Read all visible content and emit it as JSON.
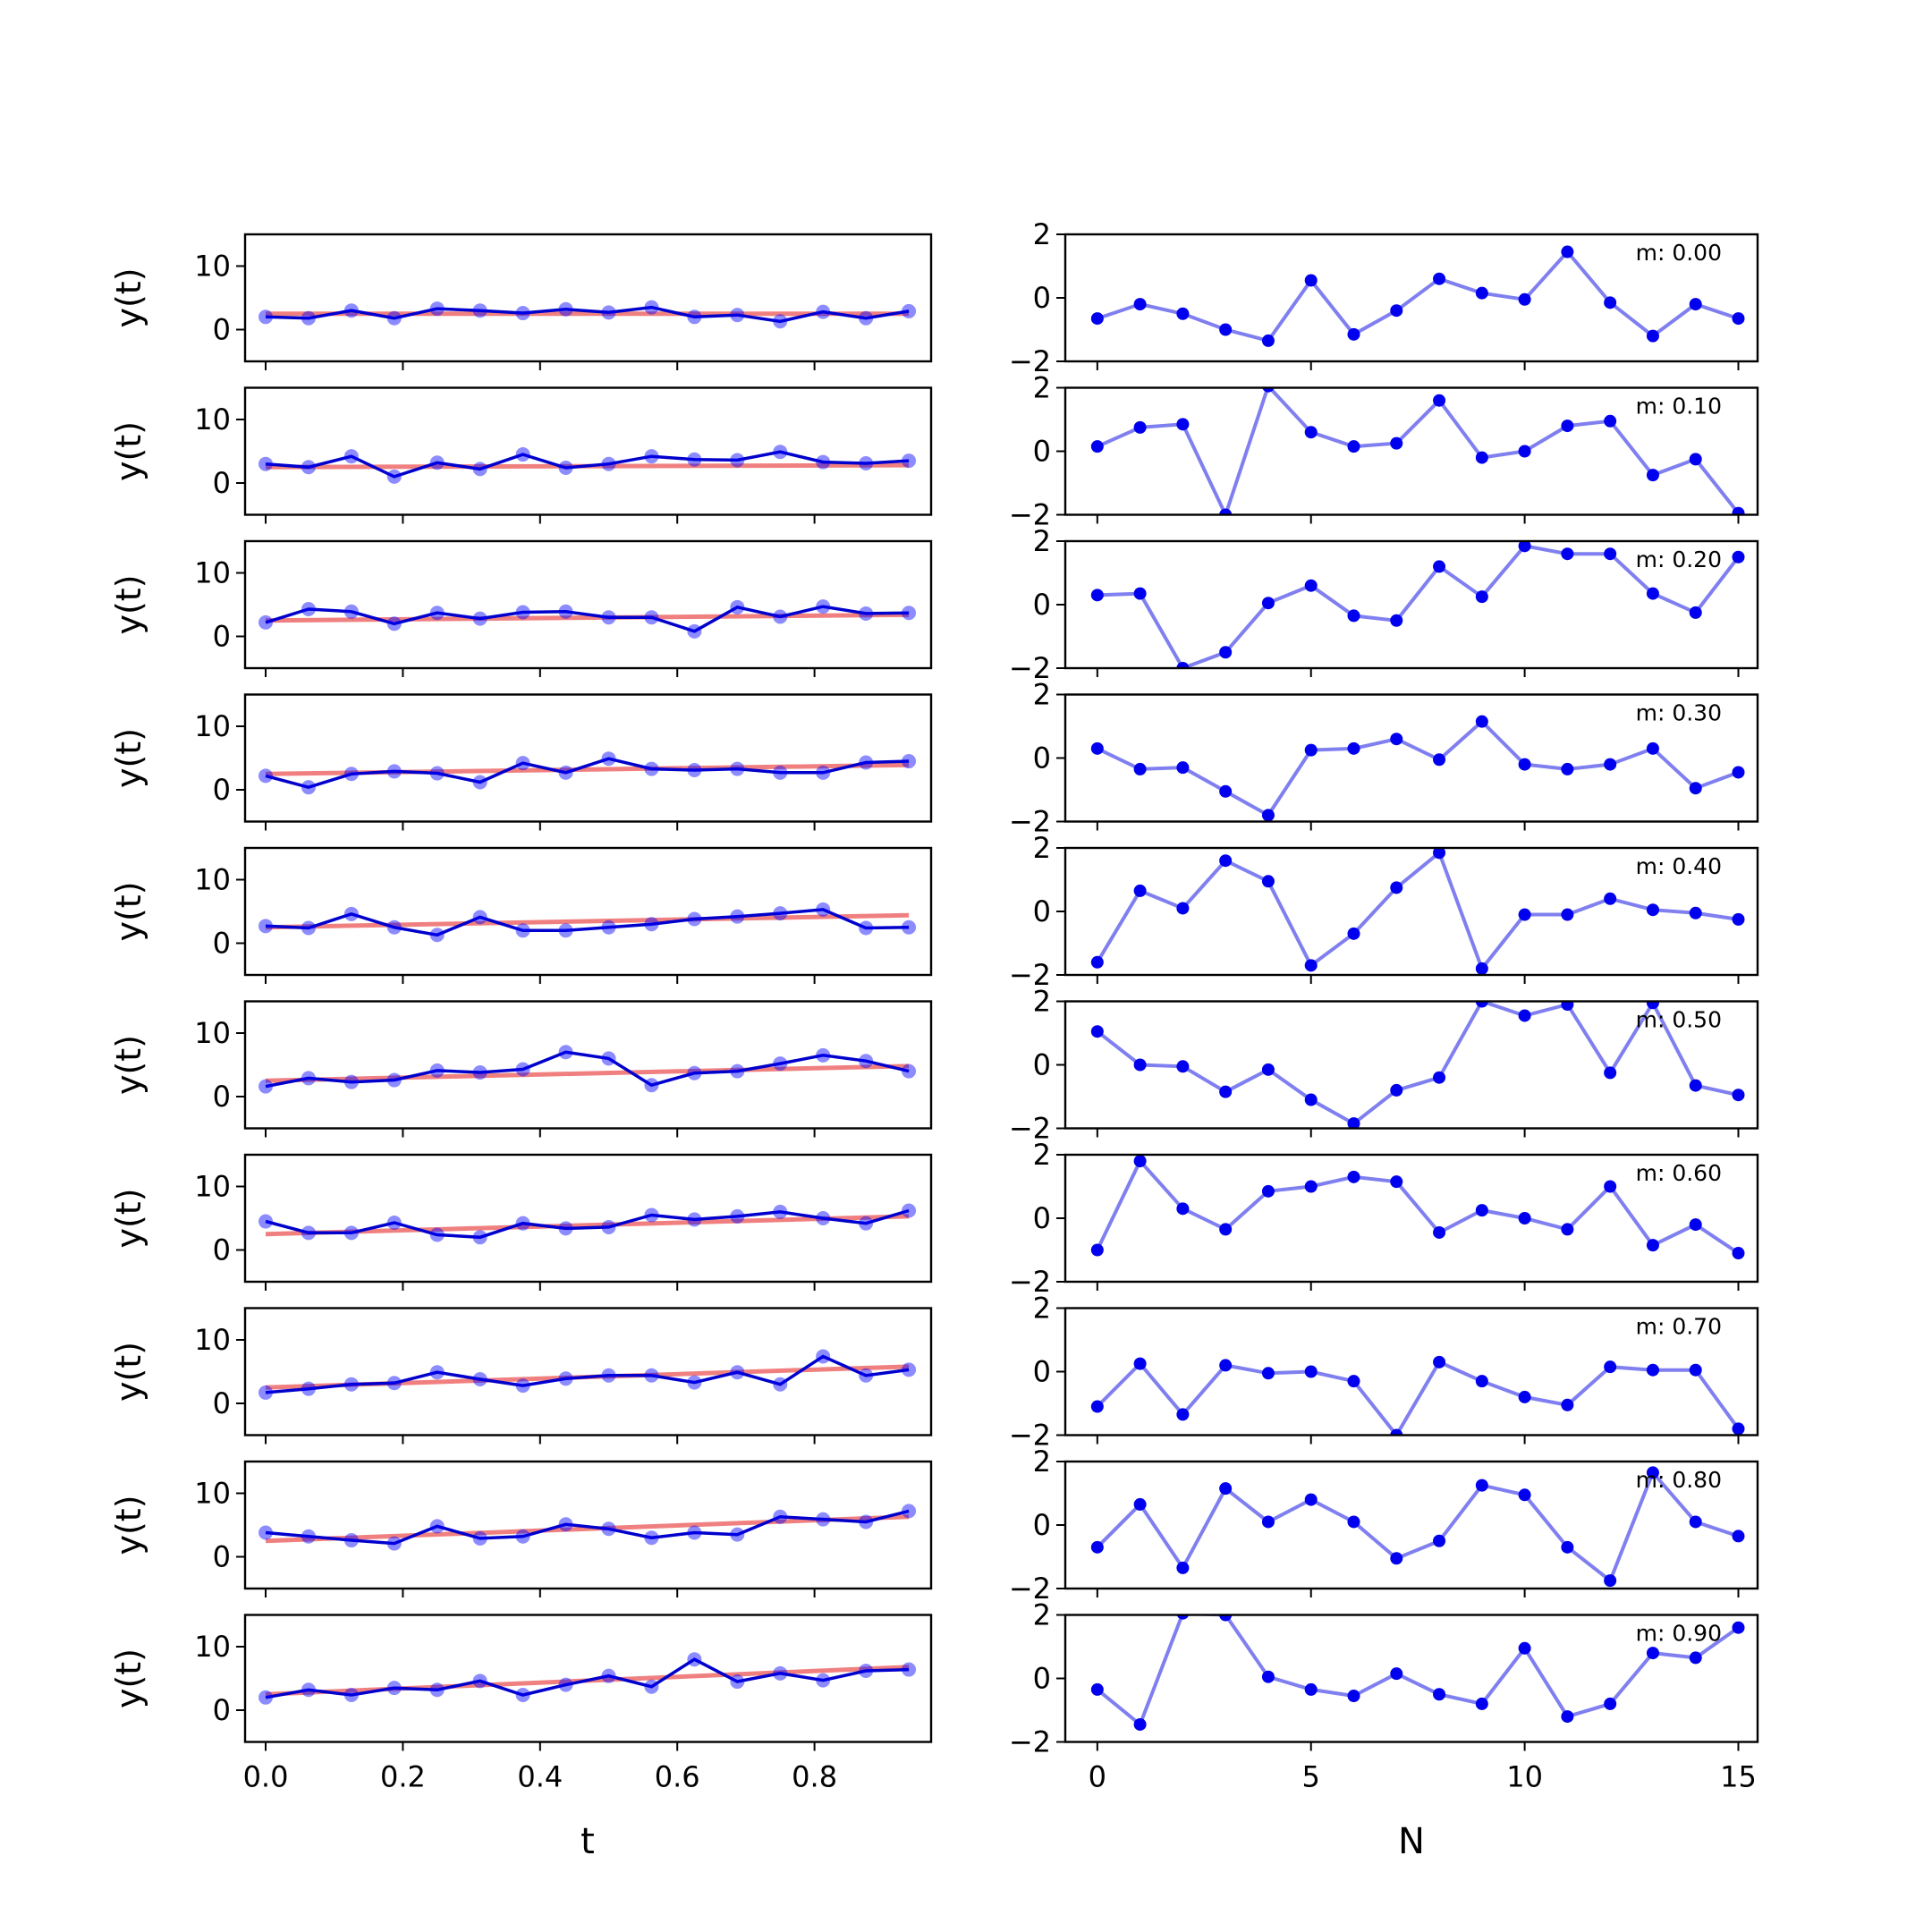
{
  "chart_data": {
    "type": "line",
    "layout": "10 rows x 2 columns of subplots",
    "left_column": {
      "xlabel": "t",
      "ylabel": "y(t)",
      "xlim": [
        -0.03,
        0.97
      ],
      "ylim": [
        -5,
        15
      ],
      "xticks": [
        "0.0",
        "0.2",
        "0.4",
        "0.6",
        "0.8"
      ],
      "xtick_values": [
        0.0,
        0.2,
        0.4,
        0.6,
        0.8
      ],
      "yticks": [
        "0",
        "10"
      ],
      "ytick_values": [
        0,
        10
      ],
      "x": [
        0.0,
        0.0625,
        0.125,
        0.1875,
        0.25,
        0.3125,
        0.375,
        0.4375,
        0.5,
        0.5625,
        0.625,
        0.6875,
        0.75,
        0.8125,
        0.875,
        0.9375
      ],
      "colors": {
        "data": "#0000cc",
        "fit": "#f08080"
      },
      "panels": [
        {
          "fit": [
            2.5,
            2.5
          ],
          "y": [
            2.0,
            1.8,
            3.0,
            1.8,
            3.3,
            3.0,
            2.6,
            3.2,
            2.7,
            3.5,
            2.0,
            2.3,
            1.3,
            2.8,
            1.8,
            2.9
          ]
        },
        {
          "fit": [
            2.5,
            2.8
          ],
          "y": [
            3.0,
            2.5,
            4.2,
            1.0,
            3.2,
            2.2,
            4.5,
            2.4,
            3.0,
            4.2,
            3.7,
            3.6,
            4.9,
            3.3,
            3.1,
            3.5
          ]
        },
        {
          "fit": [
            2.5,
            3.4
          ],
          "y": [
            2.2,
            4.3,
            3.9,
            2.0,
            3.7,
            2.8,
            3.8,
            3.9,
            3.0,
            3.0,
            0.8,
            4.6,
            3.1,
            4.7,
            3.6,
            3.7
          ]
        },
        {
          "fit": [
            2.5,
            3.9
          ],
          "y": [
            2.2,
            0.4,
            2.5,
            2.9,
            2.6,
            1.2,
            4.2,
            2.7,
            4.9,
            3.3,
            3.1,
            3.3,
            2.7,
            2.7,
            4.3,
            4.5
          ]
        },
        {
          "fit": [
            2.5,
            4.4
          ],
          "y": [
            2.7,
            2.4,
            4.6,
            2.5,
            1.3,
            4.1,
            2.0,
            2.0,
            2.5,
            3.0,
            3.8,
            4.2,
            4.7,
            5.3,
            2.4,
            2.5
          ]
        },
        {
          "fit": [
            2.5,
            4.8
          ],
          "y": [
            1.6,
            2.9,
            2.3,
            2.6,
            4.1,
            3.8,
            4.3,
            7.0,
            6.0,
            1.8,
            3.7,
            4.0,
            5.2,
            6.5,
            5.6,
            4.0
          ]
        },
        {
          "fit": [
            2.5,
            5.3
          ],
          "y": [
            4.5,
            2.7,
            2.7,
            4.3,
            2.4,
            2.0,
            4.2,
            3.4,
            3.6,
            5.5,
            4.8,
            5.3,
            6.0,
            5.0,
            4.2,
            6.2
          ]
        },
        {
          "fit": [
            2.5,
            5.8
          ],
          "y": [
            1.7,
            2.3,
            3.0,
            3.2,
            4.9,
            3.8,
            2.8,
            3.9,
            4.4,
            4.4,
            3.3,
            4.9,
            3.0,
            7.4,
            4.4,
            5.3
          ]
        },
        {
          "fit": [
            2.5,
            6.3
          ],
          "y": [
            3.8,
            3.2,
            2.6,
            2.1,
            4.8,
            2.9,
            3.2,
            5.1,
            4.4,
            3.0,
            3.8,
            3.5,
            6.3,
            5.9,
            5.5,
            7.2
          ]
        },
        {
          "fit": [
            2.5,
            6.8
          ],
          "y": [
            2.0,
            3.2,
            2.4,
            3.5,
            3.2,
            4.6,
            2.4,
            4.0,
            5.4,
            3.7,
            8.0,
            4.5,
            5.8,
            4.7,
            6.2,
            6.4
          ]
        }
      ]
    },
    "right_column": {
      "xlabel": "N",
      "xlim": [
        -0.75,
        15.45
      ],
      "ylim": [
        -2,
        2
      ],
      "xticks": [
        "0",
        "5",
        "10",
        "15"
      ],
      "xtick_values": [
        0,
        5,
        10,
        15
      ],
      "yticks": [
        "−2",
        "0",
        "2"
      ],
      "ytick_values": [
        -2,
        0,
        2
      ],
      "x": [
        0,
        1,
        2,
        3,
        4,
        5,
        6,
        7,
        8,
        9,
        10,
        11,
        12,
        13,
        14,
        15
      ],
      "colors": {
        "line": "#7f7ff0",
        "points": "#0000ee"
      },
      "panels": [
        {
          "label": "m: 0.00",
          "y": [
            -0.65,
            -0.2,
            -0.5,
            -1.0,
            -1.35,
            0.55,
            -1.15,
            -0.4,
            0.6,
            0.15,
            -0.05,
            1.45,
            -0.15,
            -1.2,
            -0.2,
            -0.65
          ]
        },
        {
          "label": "m: 0.10",
          "y": [
            0.15,
            0.75,
            0.85,
            -2.0,
            2.05,
            0.6,
            0.15,
            0.25,
            1.6,
            -0.2,
            0.0,
            0.8,
            0.95,
            -0.75,
            -0.25,
            -1.95
          ]
        },
        {
          "label": "m: 0.20",
          "y": [
            0.3,
            0.35,
            -2.0,
            -1.5,
            0.05,
            0.6,
            -0.35,
            -0.5,
            1.2,
            0.25,
            1.85,
            1.6,
            1.6,
            0.35,
            -0.25,
            1.5
          ]
        },
        {
          "label": "m: 0.30",
          "y": [
            0.3,
            -0.35,
            -0.3,
            -1.05,
            -1.8,
            0.25,
            0.3,
            0.6,
            -0.05,
            1.15,
            -0.2,
            -0.35,
            -0.2,
            0.3,
            -0.95,
            -0.45
          ]
        },
        {
          "label": "m: 0.40",
          "y": [
            -1.6,
            0.65,
            0.1,
            1.6,
            0.95,
            -1.7,
            -0.7,
            0.75,
            1.85,
            -1.8,
            -0.1,
            -0.1,
            0.4,
            0.05,
            -0.05,
            -0.25
          ]
        },
        {
          "label": "m: 0.50",
          "y": [
            1.05,
            0.0,
            -0.05,
            -0.85,
            -0.15,
            -1.1,
            -1.85,
            -0.8,
            -0.4,
            2.0,
            1.55,
            1.9,
            -0.25,
            1.95,
            -0.65,
            -0.95
          ]
        },
        {
          "label": "m: 0.60",
          "y": [
            -1.0,
            1.8,
            0.3,
            -0.35,
            0.85,
            1.0,
            1.3,
            1.15,
            -0.45,
            0.25,
            0.0,
            -0.35,
            1.0,
            -0.85,
            -0.2,
            -1.1
          ]
        },
        {
          "label": "m: 0.70",
          "y": [
            -1.1,
            0.25,
            -1.35,
            0.2,
            -0.05,
            0.0,
            -0.3,
            -2.0,
            0.3,
            -0.3,
            -0.8,
            -1.05,
            0.15,
            0.05,
            0.05,
            -1.8
          ]
        },
        {
          "label": "m: 0.80",
          "y": [
            -0.7,
            0.65,
            -1.35,
            1.15,
            0.1,
            0.8,
            0.1,
            -1.05,
            -0.5,
            1.25,
            0.95,
            -0.7,
            -1.75,
            1.65,
            0.1,
            -0.35
          ]
        },
        {
          "label": "m: 0.90",
          "y": [
            -0.35,
            -1.45,
            2.05,
            2.0,
            0.05,
            -0.35,
            -0.55,
            0.15,
            -0.5,
            -0.8,
            0.95,
            -1.2,
            -0.8,
            0.8,
            0.65,
            1.6
          ]
        }
      ]
    }
  }
}
